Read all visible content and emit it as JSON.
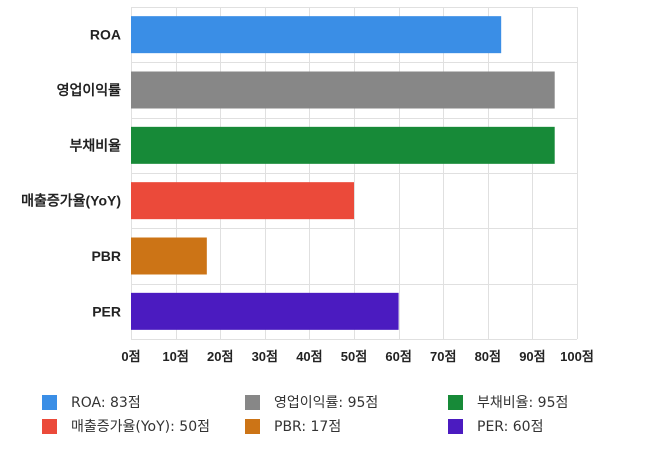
{
  "chart_data": {
    "type": "bar",
    "orientation": "horizontal",
    "categories": [
      "ROA",
      "영업이익률",
      "부채비율",
      "매출증가율(YoY)",
      "PBR",
      "PER"
    ],
    "values": [
      83,
      95,
      95,
      50,
      17,
      60
    ],
    "colors": [
      "#3a8ee6",
      "#878787",
      "#178a38",
      "#eb4a3a",
      "#cc7416",
      "#4b1bc0"
    ],
    "xlim": [
      0,
      100
    ],
    "x_ticks": [
      "0점",
      "10점",
      "20점",
      "30점",
      "40점",
      "50점",
      "60점",
      "70점",
      "80점",
      "90점",
      "100점"
    ],
    "grid": true,
    "legend_position": "bottom",
    "legend": [
      {
        "label": "ROA: 83점",
        "color": "#3a8ee6"
      },
      {
        "label": "영업이익률: 95점",
        "color": "#878787"
      },
      {
        "label": "부채비율: 95점",
        "color": "#178a38"
      },
      {
        "label": "매출증가율(YoY): 50점",
        "color": "#eb4a3a"
      },
      {
        "label": "PBR: 17점",
        "color": "#cc7416"
      },
      {
        "label": "PER: 60점",
        "color": "#4b1bc0"
      }
    ]
  }
}
